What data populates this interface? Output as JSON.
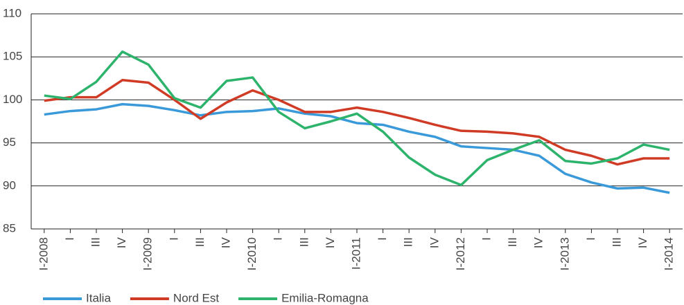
{
  "chart_data": {
    "type": "line",
    "categories": [
      "I-2008",
      "I",
      "III",
      "IV",
      "I-2009",
      "I",
      "III",
      "IV",
      "I-2010",
      "I",
      "III",
      "IV",
      "I-2011",
      "I",
      "III",
      "IV",
      "I-2012",
      "I",
      "III",
      "IV",
      "I-2013",
      "I",
      "III",
      "IV",
      "I-2014"
    ],
    "series": [
      {
        "name": "Italia",
        "color": "#3a9ad9",
        "values": [
          98.3,
          98.7,
          98.9,
          99.5,
          99.3,
          98.8,
          98.2,
          98.6,
          98.7,
          99.0,
          98.4,
          98.1,
          97.3,
          97.1,
          96.3,
          95.7,
          94.6,
          94.4,
          94.2,
          93.5,
          91.4,
          90.4,
          89.7,
          89.8,
          89.2
        ]
      },
      {
        "name": "Nord Est",
        "color": "#d03b26",
        "values": [
          99.9,
          100.3,
          100.3,
          102.3,
          102.0,
          100.0,
          97.8,
          99.7,
          101.1,
          100.0,
          98.6,
          98.6,
          99.1,
          98.6,
          97.9,
          97.1,
          96.4,
          96.3,
          96.1,
          95.7,
          94.2,
          93.5,
          92.5,
          93.2,
          93.2
        ]
      },
      {
        "name": "Emilia-Romagna",
        "color": "#2db36b",
        "values": [
          100.5,
          100.1,
          102.1,
          105.6,
          104.1,
          100.2,
          99.1,
          102.2,
          102.6,
          98.6,
          96.7,
          97.5,
          98.4,
          96.3,
          93.3,
          91.3,
          90.1,
          93.0,
          94.2,
          95.3,
          92.9,
          92.6,
          93.2,
          94.8,
          94.2
        ]
      }
    ],
    "ylim": [
      85,
      110
    ],
    "yticks": [
      85,
      90,
      95,
      100,
      105,
      110
    ],
    "grid": true,
    "legend": "bottom"
  }
}
